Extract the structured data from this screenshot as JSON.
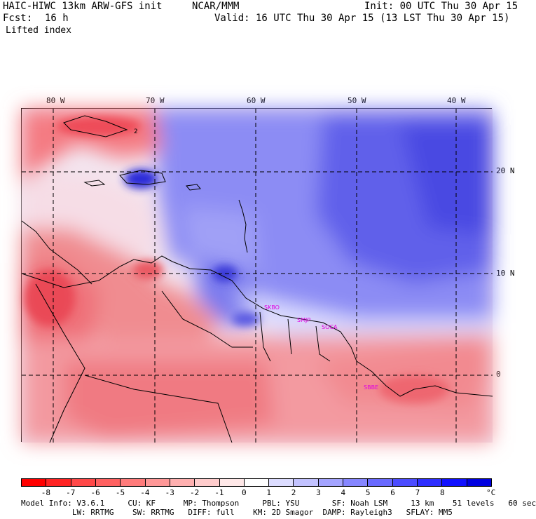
{
  "header": {
    "left_line1": "HAIC-HIWC 13km ARW-GFS init",
    "center_line1": "NCAR/MMM",
    "right_line1": "Init: 00 UTC Thu 30 Apr 15",
    "fcst_label": "Fcst:",
    "fcst_value": "16 h",
    "valid_line": "Valid: 16 UTC Thu 30 Apr 15 (13 LST Thu 30 Apr 15)",
    "field_name": "Lifted index"
  },
  "map": {
    "lon_ticks": [
      "80 W",
      "70 W",
      "60 W",
      "50 W",
      "40 W"
    ],
    "lat_ticks": [
      "20 N",
      "10 N",
      "0"
    ],
    "stations": [
      "SKBO",
      "SMJP",
      "SOCA",
      "SBBE"
    ],
    "contour_label": "2"
  },
  "colorbar": {
    "labels": [
      "-8",
      "-7",
      "-6",
      "-5",
      "-4",
      "-3",
      "-2",
      "-1",
      "0",
      "1",
      "2",
      "3",
      "4",
      "5",
      "6",
      "7",
      "8"
    ],
    "unit": "°C",
    "colors": [
      "#ff0000",
      "#ff2424",
      "#ff4848",
      "#ff6161",
      "#ff7b7b",
      "#ff9898",
      "#ffb0b0",
      "#ffcccc",
      "#ffe8e8",
      "#ffffff",
      "#dcdcff",
      "#c2c2ff",
      "#a4a4ff",
      "#8686ff",
      "#6a6aff",
      "#4c4cff",
      "#2e2eff",
      "#1010ff",
      "#0000e0"
    ]
  },
  "footer": {
    "line1": "Model Info: V3.6.1     CU: KF      MP: Thompson     PBL: YSU       SF: Noah LSM     13 km    51 levels   60 sec",
    "line2": "           LW: RRTMG    SW: RRTMG   DIFF: full    KM: 2D Smagor  DAMP: Rayleigh3   SFLAY: MM5"
  }
}
